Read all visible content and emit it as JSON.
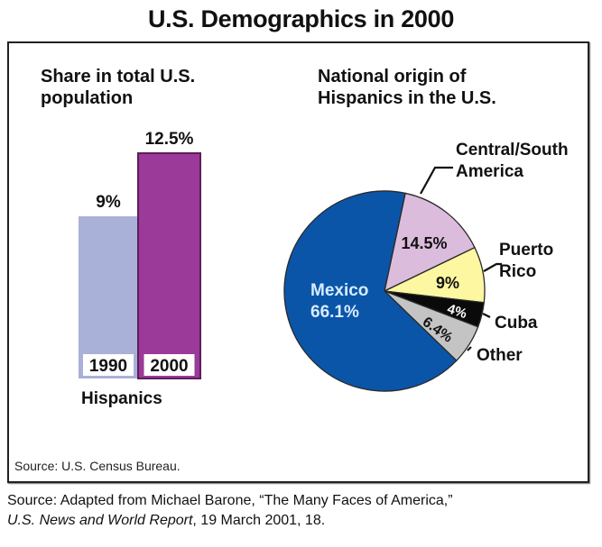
{
  "page": {
    "title": "U.S. Demographics in 2000",
    "source_inner": "Source: U.S. Census Bureau.",
    "source_outer_line1": "Source: Adapted from Michael Barone, “The Many Faces of America,”",
    "source_outer_italic": "U.S. News and World Report",
    "source_outer_rest": ", 19 March 2001, 18."
  },
  "chart_data": [
    {
      "type": "bar",
      "title": "Share in total U.S. population",
      "xlabel": "Hispanics",
      "ylabel": "",
      "categories": [
        "1990",
        "2000"
      ],
      "values": [
        9,
        12.5
      ],
      "data_labels": [
        "9%",
        "12.5%"
      ],
      "unit": "%",
      "ylim": [
        0,
        12.5
      ],
      "grid": false,
      "colors": [
        "#a9b1d8",
        "#9b3a98"
      ]
    },
    {
      "type": "pie",
      "title": "National origin of Hispanics in the U.S.",
      "slices": [
        {
          "label": "Central/South America",
          "value": 14.5,
          "data_label": "14.5%",
          "color": "#dcbcdc",
          "label_color": "#111111"
        },
        {
          "label": "Puerto Rico",
          "value": 9,
          "data_label": "9%",
          "color": "#fcf7a0",
          "label_color": "#111111"
        },
        {
          "label": "Cuba",
          "value": 4,
          "data_label": "4%",
          "color": "#0a0a0a",
          "label_color": "#ffffff"
        },
        {
          "label": "Other",
          "value": 6.4,
          "data_label": "6.4%",
          "color": "#c4c4c4",
          "label_color": "#111111"
        },
        {
          "label": "Mexico",
          "value": 66.1,
          "data_label": "66.1%",
          "color": "#0a55a8",
          "label_color": "#d8ecff"
        }
      ],
      "external_labels": {
        "central_south_line1": "Central/South",
        "central_south_line2": "America",
        "puerto_rico_line1": "Puerto",
        "puerto_rico_line2": "Rico",
        "cuba": "Cuba",
        "other": "Other",
        "mexico_name": "Mexico"
      },
      "start_angle_deg_from_top": 12,
      "direction": "clockwise"
    }
  ]
}
